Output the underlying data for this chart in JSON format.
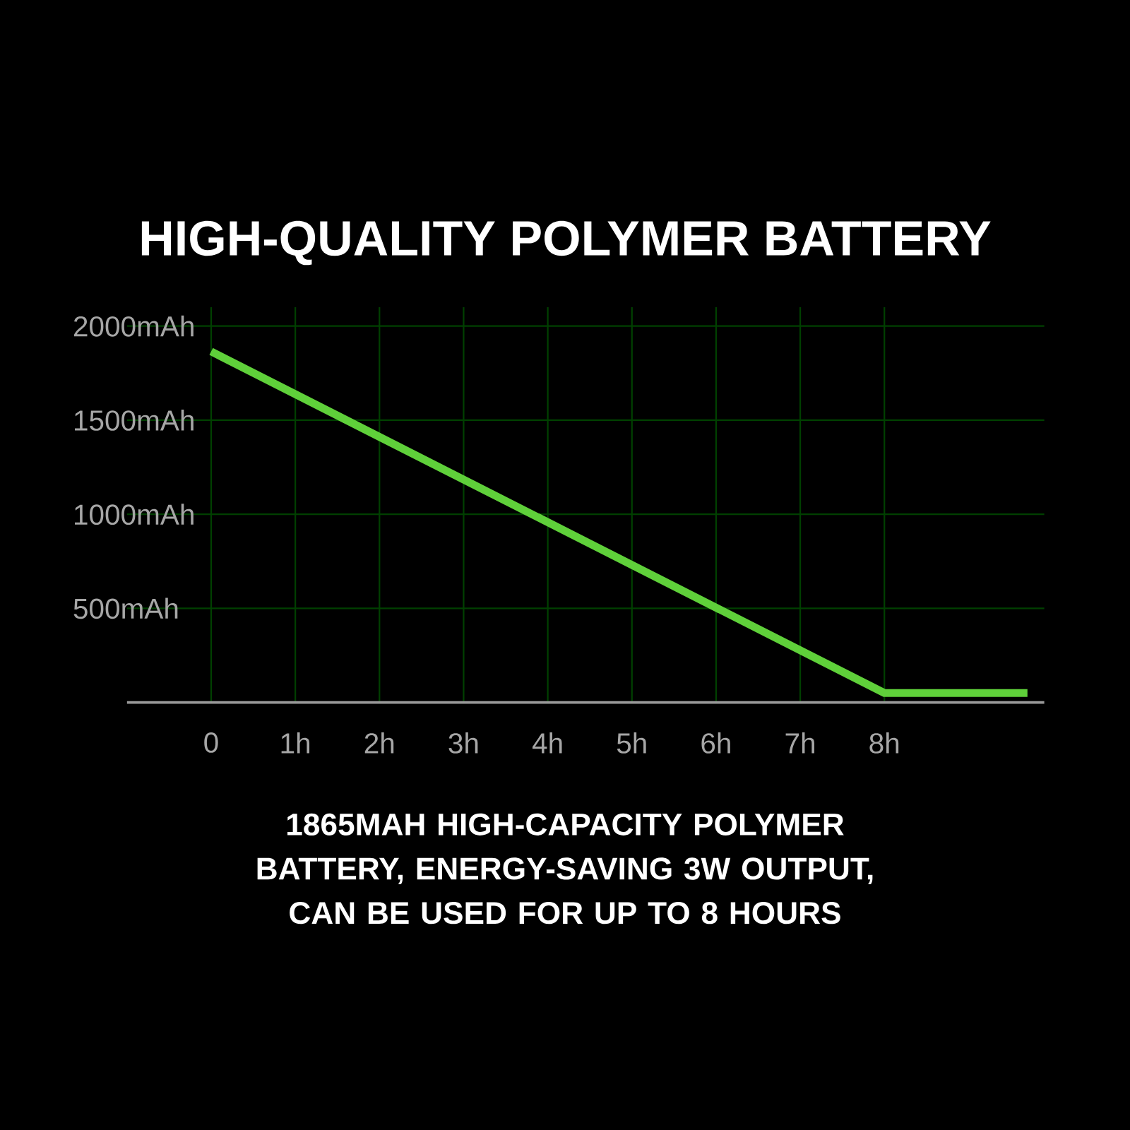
{
  "chart_data": {
    "type": "line",
    "title": "HIGH-QUALITY POLYMER BATTERY",
    "x": [
      0,
      8,
      9.7
    ],
    "series": [
      {
        "color": "#5fd03a",
        "values": [
          1865,
          50,
          50
        ]
      }
    ],
    "xlim": [
      -1,
      9.9
    ],
    "ylim": [
      0,
      2100
    ],
    "xticks": [
      {
        "value": 0,
        "label": "0"
      },
      {
        "value": 1,
        "label": "1h"
      },
      {
        "value": 2,
        "label": "2h"
      },
      {
        "value": 3,
        "label": "3h"
      },
      {
        "value": 4,
        "label": "4h"
      },
      {
        "value": 5,
        "label": "5h"
      },
      {
        "value": 6,
        "label": "6h"
      },
      {
        "value": 7,
        "label": "7h"
      },
      {
        "value": 8,
        "label": "8h"
      }
    ],
    "yticks": [
      {
        "value": 500,
        "label": "500mAh"
      },
      {
        "value": 1000,
        "label": "1000mAh"
      },
      {
        "value": 1500,
        "label": "1500mAh"
      },
      {
        "value": 2000,
        "label": "2000mAh"
      }
    ],
    "grid": true,
    "annotations": [
      "1865MAH HIGH-CAPACITY POLYMER BATTERY, ENERGY-SAVING 3W OUTPUT, CAN BE USED FOR UP TO 8 HOURS"
    ]
  }
}
